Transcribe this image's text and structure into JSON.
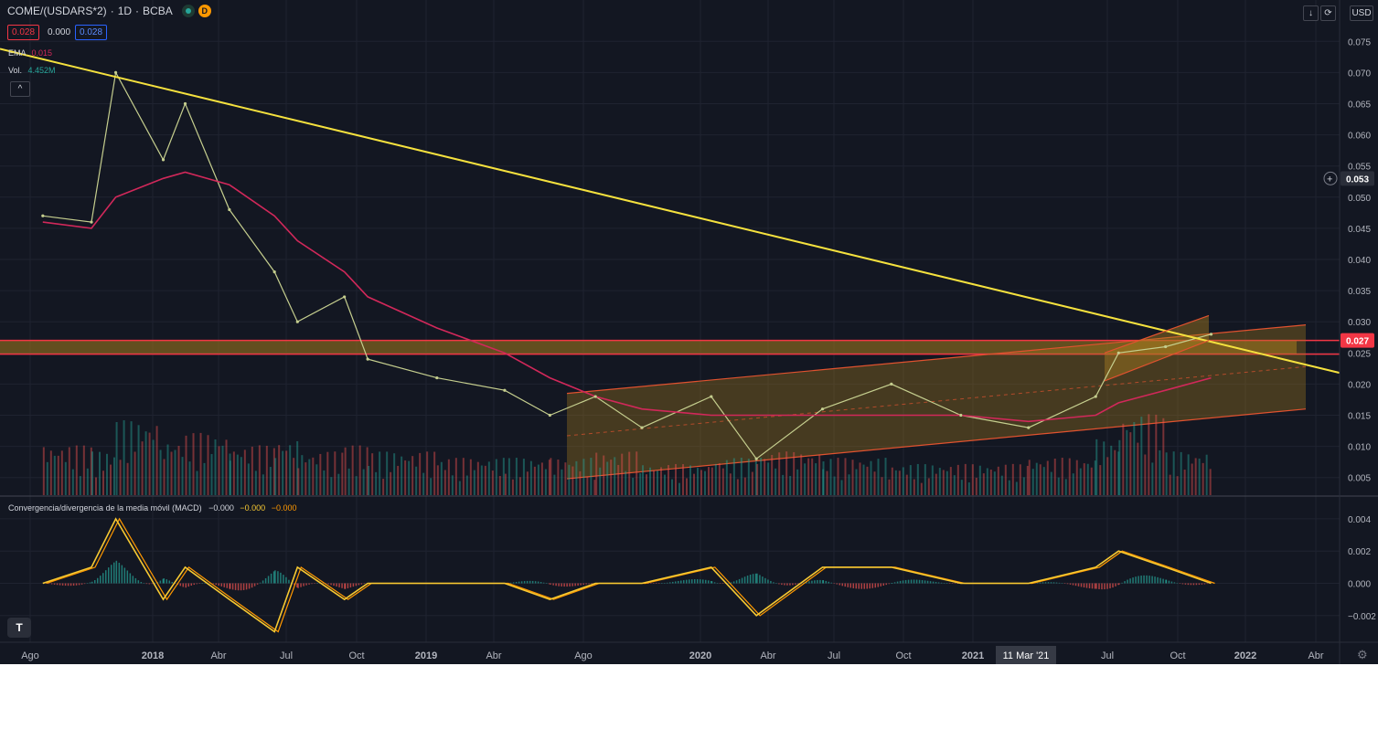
{
  "header": {
    "symbol": "COME/(USDARS*2)",
    "sep1": "·",
    "interval": "1D",
    "sep2": "·",
    "exchange": "BCBA",
    "status_badge": "D",
    "bid": "0.028",
    "spread": "0.000",
    "ask": "0.028",
    "ema_label": "EMA",
    "ema_value": "0.015",
    "vol_label": "Vol.",
    "vol_value": "4.452M",
    "collapse_glyph": "^"
  },
  "currency": "USD",
  "price_axis": {
    "ticks": [
      "0.075",
      "0.070",
      "0.065",
      "0.060",
      "0.055",
      "0.050",
      "0.045",
      "0.040",
      "0.035",
      "0.030",
      "0.025",
      "0.020",
      "0.015",
      "0.010",
      "0.005"
    ],
    "current_price": "0.053",
    "resistance_price": "0.027"
  },
  "macd_pane": {
    "title": "Convergencia/divergencia de la media móvil (MACD)",
    "hist_value": "−0.000",
    "macd_value": "−0.000",
    "signal_value": "−0.000",
    "ticks": [
      "0.004",
      "0.002",
      "0.000",
      "−0.002"
    ]
  },
  "time_axis": {
    "labels": [
      "Ago",
      "2018",
      "Abr",
      "Jul",
      "Oct",
      "2019",
      "Abr",
      "Ago",
      "2020",
      "Abr",
      "Jul",
      "Oct",
      "2021",
      "Jul",
      "Oct",
      "2022",
      "Abr"
    ],
    "crosshair_label": "11 Mar '21"
  },
  "colors": {
    "background": "#131722",
    "price_line": "#c5ce8e",
    "ema": "#d1285a",
    "trendline": "#f5e13e",
    "zone_fill": "#a67c1e",
    "zone_border": "#f23645",
    "channel": "#e0522f",
    "macd_line": "#f7c932",
    "signal_line": "#ff9800",
    "hist_up": "#26a69a",
    "hist_down": "#ef5350"
  },
  "chart_data": {
    "type": "line",
    "title": "COME/(USDARS*2)",
    "x": [
      "2017-08",
      "2017-10",
      "2017-11",
      "2018-01",
      "2018-02",
      "2018-04",
      "2018-06",
      "2018-07",
      "2018-09",
      "2018-10",
      "2019-01",
      "2019-04",
      "2019-06",
      "2019-08",
      "2019-10",
      "2020-01",
      "2020-03",
      "2020-06",
      "2020-09",
      "2020-12",
      "2021-03",
      "2021-06",
      "2021-07",
      "2021-09",
      "2021-11"
    ],
    "series": [
      {
        "values": [
          0.047,
          0.046,
          0.07,
          0.056,
          0.065,
          0.048,
          0.038,
          0.03,
          0.034,
          0.024,
          0.021,
          0.019,
          0.015,
          0.018,
          0.013,
          0.018,
          0.008,
          0.016,
          0.02,
          0.015,
          0.013,
          0.018,
          0.025,
          0.026,
          0.028
        ]
      },
      {
        "name": "EMA",
        "values": [
          0.046,
          0.045,
          0.05,
          0.053,
          0.054,
          0.052,
          0.047,
          0.043,
          0.038,
          0.034,
          0.029,
          0.025,
          0.021,
          0.018,
          0.016,
          0.015,
          0.015,
          0.015,
          0.015,
          0.015,
          0.014,
          0.015,
          0.017,
          0.019,
          0.021
        ]
      }
    ],
    "volume": [
      8,
      7,
      12,
      9,
      10,
      8,
      9,
      7,
      8,
      7,
      6,
      6,
      6,
      7,
      5,
      6,
      7,
      6,
      5,
      5,
      6,
      9,
      13,
      7,
      5
    ],
    "macd": [
      0.0,
      0.001,
      0.004,
      -0.001,
      0.001,
      -0.001,
      -0.003,
      0.001,
      -0.001,
      0.0,
      0.0,
      0.0,
      -0.001,
      0.0,
      0.0,
      0.001,
      -0.002,
      0.001,
      0.001,
      0.0,
      0.0,
      0.001,
      0.002,
      0.001,
      0.0
    ],
    "ylim": [
      0.0,
      0.078
    ],
    "log_scale": false,
    "grid": true
  }
}
